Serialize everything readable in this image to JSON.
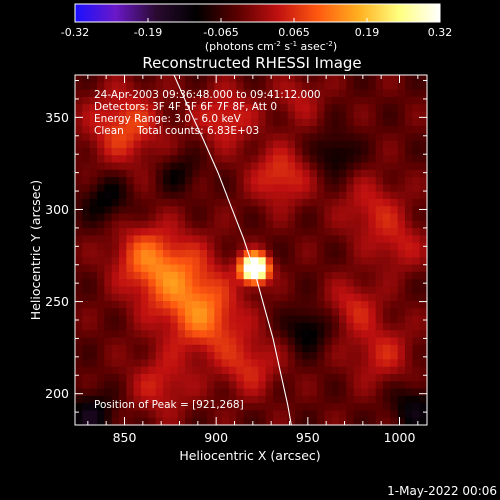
{
  "colorbar": {
    "tick_labels": [
      "-0.32",
      "-0.19",
      "-0.065",
      "0.065",
      "0.19",
      "0.32"
    ],
    "unit_prefix": "(photons cm",
    "unit_exp1": "-2",
    "unit_mid": " s",
    "unit_exp2": "-1",
    "unit_mid2": " asec",
    "unit_exp3": "-2",
    "unit_suffix": ")",
    "colors": [
      "#1a10ff",
      "#6a18c8",
      "#2a0a30",
      "#000000",
      "#5a0000",
      "#c01010",
      "#ff5a10",
      "#ffb020",
      "#ffff80",
      "#ffffff"
    ]
  },
  "chart_data": {
    "type": "heatmap",
    "title": "Reconstructed RHESSI Image",
    "xlabel": "Heliocentric X (arcsec)",
    "ylabel": "Heliocentric Y (arcsec)",
    "xlim": [
      823,
      1015
    ],
    "ylim": [
      183,
      373
    ],
    "x_ticks": [
      850,
      900,
      950,
      1000
    ],
    "y_ticks": [
      200,
      250,
      300,
      350
    ],
    "value_range": [
      -0.32,
      0.32
    ],
    "peak": {
      "x": 921,
      "y": 268
    },
    "limb_curve_xy": [
      [
        877,
        373
      ],
      [
        885,
        355
      ],
      [
        893,
        338
      ],
      [
        901,
        320
      ],
      [
        908,
        302
      ],
      [
        915,
        284
      ],
      [
        921,
        266
      ],
      [
        926,
        248
      ],
      [
        931,
        230
      ],
      [
        935,
        212
      ],
      [
        939,
        194
      ],
      [
        941,
        183
      ]
    ],
    "blobs": [
      {
        "x": 921,
        "y": 268,
        "sigma": 5,
        "amp": 0.55
      },
      {
        "x": 878,
        "y": 262,
        "sigma": 16,
        "amp": 0.14
      },
      {
        "x": 895,
        "y": 240,
        "sigma": 14,
        "amp": 0.13
      },
      {
        "x": 860,
        "y": 275,
        "sigma": 12,
        "amp": 0.1
      },
      {
        "x": 850,
        "y": 345,
        "sigma": 14,
        "amp": 0.12
      },
      {
        "x": 905,
        "y": 350,
        "sigma": 11,
        "amp": 0.1
      },
      {
        "x": 935,
        "y": 318,
        "sigma": 11,
        "amp": 0.11
      },
      {
        "x": 985,
        "y": 300,
        "sigma": 12,
        "amp": 0.08
      },
      {
        "x": 1000,
        "y": 280,
        "sigma": 10,
        "amp": 0.07
      },
      {
        "x": 975,
        "y": 248,
        "sigma": 10,
        "amp": 0.08
      },
      {
        "x": 990,
        "y": 222,
        "sigma": 12,
        "amp": 0.08
      },
      {
        "x": 918,
        "y": 215,
        "sigma": 11,
        "amp": 0.09
      },
      {
        "x": 870,
        "y": 205,
        "sigma": 12,
        "amp": 0.08
      },
      {
        "x": 945,
        "y": 360,
        "sigma": 9,
        "amp": 0.06
      },
      {
        "x": 840,
        "y": 305,
        "sigma": 9,
        "amp": -0.08
      },
      {
        "x": 965,
        "y": 330,
        "sigma": 8,
        "amp": -0.08
      },
      {
        "x": 950,
        "y": 235,
        "sigma": 8,
        "amp": -0.09
      },
      {
        "x": 1008,
        "y": 192,
        "sigma": 9,
        "amp": -0.09
      },
      {
        "x": 832,
        "y": 188,
        "sigma": 9,
        "amp": -0.1
      },
      {
        "x": 880,
        "y": 320,
        "sigma": 8,
        "amp": -0.06
      }
    ]
  },
  "annotations": {
    "line1": "24-Apr-2003 09:36:48.000 to 09:41:12.000",
    "line2": "Detectors: 3F 4F 5F 6F 7F 8F, Att 0",
    "line3": "Energy Range: 3.0 - 6.0 keV",
    "line4": "Clean    Total counts: 6.83E+03",
    "peak_label": "Position of Peak = [921,268]"
  },
  "footer_date": "1-May-2022 00:06"
}
